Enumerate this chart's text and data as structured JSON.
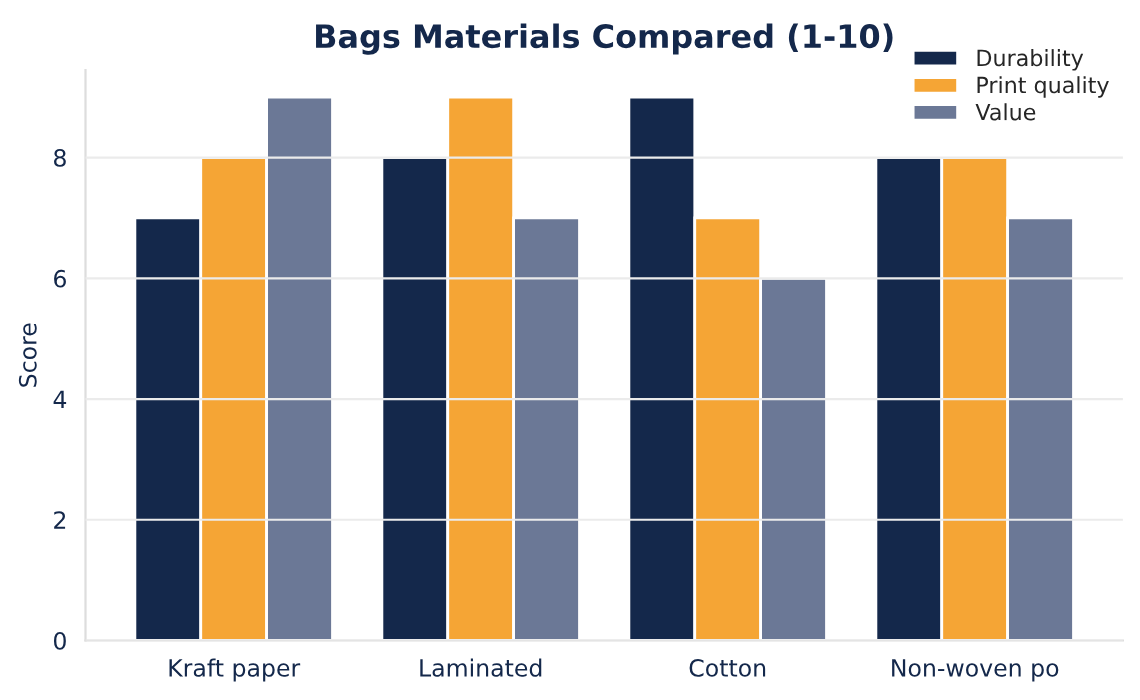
{
  "chart_data": {
    "type": "bar",
    "title": "Bags Materials Compared (1-10)",
    "ylabel": "Score",
    "categories": [
      "Kraft paper",
      "Laminated",
      "Cotton",
      "Non-woven po"
    ],
    "series": [
      {
        "name": "Durability",
        "color": "#14284b",
        "values": [
          7,
          8,
          9,
          8
        ]
      },
      {
        "name": "Print quality",
        "color": "#f5a535",
        "values": [
          8,
          9,
          7,
          8
        ]
      },
      {
        "name": "Value",
        "color": "#6b7896",
        "values": [
          9,
          7,
          6,
          7
        ]
      }
    ],
    "ylim": [
      0,
      9.45
    ],
    "yticks": [
      0,
      2,
      4,
      6,
      8
    ],
    "grid": "y",
    "legend": "top right"
  }
}
